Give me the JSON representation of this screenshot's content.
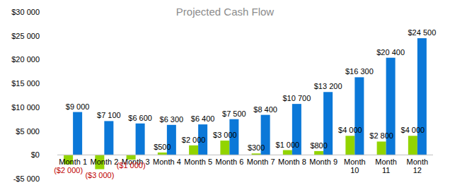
{
  "chart_data": {
    "type": "bar",
    "title": "Projected Cash Flow",
    "categories": [
      "Month 1",
      "Month 2",
      "Month 3",
      "Month 4",
      "Month 5",
      "Month 6",
      "Month 7",
      "Month 8",
      "Month 9",
      "Month 10",
      "Month 11",
      "Month 12"
    ],
    "series": [
      {
        "color": "#92d400",
        "values": [
          -2000,
          -3000,
          -1000,
          500,
          2000,
          3000,
          300,
          1000,
          800,
          4000,
          2800,
          4000
        ],
        "value_labels": [
          "($2 000)",
          "($3 000)",
          "($1 000)",
          "$500",
          "$2 000",
          "$3 000",
          "$300",
          "$1 000",
          "$800",
          "$4 000",
          "$2 800",
          "$4 000"
        ]
      },
      {
        "color": "#0b78d8",
        "values": [
          9000,
          7100,
          6600,
          6300,
          6400,
          7500,
          8400,
          10700,
          13200,
          16300,
          20400,
          24500
        ],
        "value_labels": [
          "$9 000",
          "$7 100",
          "$6 600",
          "$6 300",
          "$6 400",
          "$7 500",
          "$8 400",
          "$10 700",
          "$13 200",
          "$16 300",
          "$20 400",
          "$24 500"
        ]
      }
    ],
    "ylim": [
      -5000,
      30000
    ],
    "yticks": [
      {
        "value": -5000,
        "label": "-$5 000"
      },
      {
        "value": 0,
        "label": "$0"
      },
      {
        "value": 5000,
        "label": "$5 000"
      },
      {
        "value": 10000,
        "label": "$10 000"
      },
      {
        "value": 15000,
        "label": "$15 000"
      },
      {
        "value": 20000,
        "label": "$20 000"
      },
      {
        "value": 25000,
        "label": "$25 000"
      },
      {
        "value": 30000,
        "label": "$30 000"
      }
    ],
    "grid": false,
    "data_labels": true
  }
}
